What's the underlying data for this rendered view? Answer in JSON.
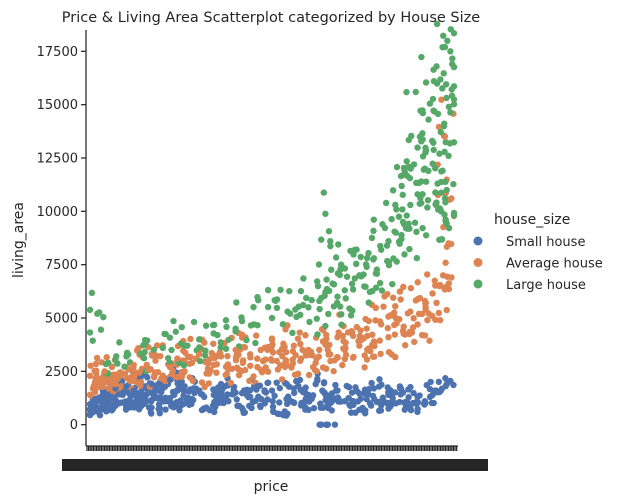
{
  "chart_data": {
    "type": "scatter",
    "title": "Price & Living Area Scatterplot categorized by House Size",
    "xlabel": "price",
    "ylabel": "living_area",
    "x_axis": "categorical (price values, overplotted tick labels)",
    "ylim": [
      -1000,
      18500
    ],
    "yticks": [
      0,
      2500,
      5000,
      7500,
      10000,
      12500,
      15000,
      17500
    ],
    "ytick_labels": [
      "0",
      "2500",
      "5000",
      "7500",
      "10000",
      "12500",
      "15000",
      "17500"
    ],
    "grid": false,
    "legend": {
      "title": "house_size",
      "placement": "right"
    },
    "series": [
      {
        "name": "Small house",
        "color": "#4c72b0",
        "points": [
          [
            0.005,
            600
          ],
          [
            0.01,
            900
          ],
          [
            0.015,
            1200
          ],
          [
            0.02,
            700
          ],
          [
            0.03,
            1100
          ],
          [
            0.04,
            1500
          ],
          [
            0.05,
            800
          ],
          [
            0.06,
            1300
          ],
          [
            0.07,
            1700
          ],
          [
            0.08,
            1000
          ],
          [
            0.09,
            1400
          ],
          [
            0.1,
            1800
          ],
          [
            0.11,
            900
          ],
          [
            0.12,
            1600
          ],
          [
            0.13,
            1200
          ],
          [
            0.14,
            2000
          ],
          [
            0.15,
            1000
          ],
          [
            0.16,
            1500
          ],
          [
            0.17,
            1900
          ],
          [
            0.18,
            1300
          ],
          [
            0.19,
            700
          ],
          [
            0.2,
            1700
          ],
          [
            0.21,
            1100
          ],
          [
            0.22,
            2100
          ],
          [
            0.23,
            1400
          ],
          [
            0.25,
            900
          ],
          [
            0.26,
            1800
          ],
          [
            0.28,
            1200
          ],
          [
            0.3,
            1600
          ],
          [
            0.32,
            800
          ],
          [
            0.34,
            1400
          ],
          [
            0.36,
            1900
          ],
          [
            0.38,
            1100
          ],
          [
            0.4,
            1500
          ],
          [
            0.42,
            700
          ],
          [
            0.44,
            1300
          ],
          [
            0.46,
            1800
          ],
          [
            0.48,
            1000
          ],
          [
            0.5,
            1600
          ],
          [
            0.52,
            500
          ],
          [
            0.54,
            1200
          ],
          [
            0.56,
            1700
          ],
          [
            0.58,
            900
          ],
          [
            0.6,
            1400
          ],
          [
            0.62,
            1900
          ],
          [
            0.64,
            800
          ],
          [
            0.66,
            1300
          ],
          [
            0.68,
            1600
          ],
          [
            0.65,
            0
          ],
          [
            0.7,
            1100
          ],
          [
            0.72,
            1500
          ],
          [
            0.74,
            700
          ],
          [
            0.76,
            1200
          ],
          [
            0.78,
            1700
          ],
          [
            0.8,
            900
          ],
          [
            0.82,
            1400
          ],
          [
            0.84,
            1000
          ],
          [
            0.86,
            1500
          ],
          [
            0.88,
            800
          ],
          [
            0.9,
            1300
          ],
          [
            0.92,
            1100
          ],
          [
            0.95,
            1600
          ],
          [
            0.98,
            1900
          ]
        ]
      },
      {
        "name": "Average house",
        "color": "#dd8452",
        "points": [
          [
            0.01,
            1800
          ],
          [
            0.02,
            2200
          ],
          [
            0.03,
            1900
          ],
          [
            0.04,
            2500
          ],
          [
            0.05,
            2100
          ],
          [
            0.06,
            2700
          ],
          [
            0.07,
            1900
          ],
          [
            0.08,
            2400
          ],
          [
            0.1,
            2200
          ],
          [
            0.12,
            2800
          ],
          [
            0.14,
            2000
          ],
          [
            0.16,
            2600
          ],
          [
            0.18,
            3000
          ],
          [
            0.2,
            2300
          ],
          [
            0.22,
            2700
          ],
          [
            0.24,
            3100
          ],
          [
            0.26,
            2500
          ],
          [
            0.28,
            2900
          ],
          [
            0.3,
            3300
          ],
          [
            0.32,
            2400
          ],
          [
            0.34,
            2800
          ],
          [
            0.36,
            3200
          ],
          [
            0.38,
            2600
          ],
          [
            0.4,
            3500
          ],
          [
            0.42,
            2900
          ],
          [
            0.44,
            3300
          ],
          [
            0.46,
            2700
          ],
          [
            0.48,
            3600
          ],
          [
            0.5,
            3000
          ],
          [
            0.52,
            3400
          ],
          [
            0.54,
            2800
          ],
          [
            0.56,
            3700
          ],
          [
            0.58,
            3100
          ],
          [
            0.6,
            3500
          ],
          [
            0.62,
            2900
          ],
          [
            0.64,
            3900
          ],
          [
            0.66,
            3300
          ],
          [
            0.68,
            4100
          ],
          [
            0.7,
            3500
          ],
          [
            0.72,
            4300
          ],
          [
            0.74,
            3700
          ],
          [
            0.76,
            4500
          ],
          [
            0.78,
            3900
          ],
          [
            0.8,
            4700
          ],
          [
            0.82,
            4100
          ],
          [
            0.84,
            5000
          ],
          [
            0.86,
            4400
          ],
          [
            0.88,
            5300
          ],
          [
            0.9,
            4700
          ],
          [
            0.92,
            5800
          ],
          [
            0.94,
            5100
          ],
          [
            0.96,
            6500
          ],
          [
            0.97,
            7000
          ],
          [
            0.975,
            13500
          ],
          [
            0.985,
            8500
          ]
        ]
      },
      {
        "name": "Large house",
        "color": "#55a868",
        "points": [
          [
            0.02,
            5200
          ],
          [
            0.05,
            2900
          ],
          [
            0.1,
            3200
          ],
          [
            0.15,
            3400
          ],
          [
            0.2,
            3600
          ],
          [
            0.25,
            3800
          ],
          [
            0.3,
            4000
          ],
          [
            0.35,
            4200
          ],
          [
            0.4,
            4500
          ],
          [
            0.45,
            4700
          ],
          [
            0.5,
            5000
          ],
          [
            0.55,
            5200
          ],
          [
            0.6,
            5500
          ],
          [
            0.63,
            5800
          ],
          [
            0.65,
            6800
          ],
          [
            0.66,
            8600
          ],
          [
            0.68,
            6000
          ],
          [
            0.7,
            6300
          ],
          [
            0.72,
            6600
          ],
          [
            0.74,
            7000
          ],
          [
            0.76,
            7400
          ],
          [
            0.78,
            7800
          ],
          [
            0.8,
            8200
          ],
          [
            0.82,
            8600
          ],
          [
            0.84,
            9000
          ],
          [
            0.86,
            9500
          ],
          [
            0.87,
            9800
          ],
          [
            0.88,
            10300
          ],
          [
            0.89,
            12200
          ],
          [
            0.9,
            10800
          ],
          [
            0.91,
            11400
          ],
          [
            0.92,
            12000
          ],
          [
            0.93,
            14300
          ],
          [
            0.94,
            13300
          ],
          [
            0.945,
            16100
          ],
          [
            0.955,
            11300
          ],
          [
            0.96,
            12700
          ],
          [
            0.965,
            10000
          ],
          [
            0.975,
            17700
          ],
          [
            0.98,
            11000
          ],
          [
            0.985,
            12600
          ],
          [
            0.99,
            17500
          ],
          [
            0.995,
            16900
          ]
        ]
      }
    ]
  }
}
